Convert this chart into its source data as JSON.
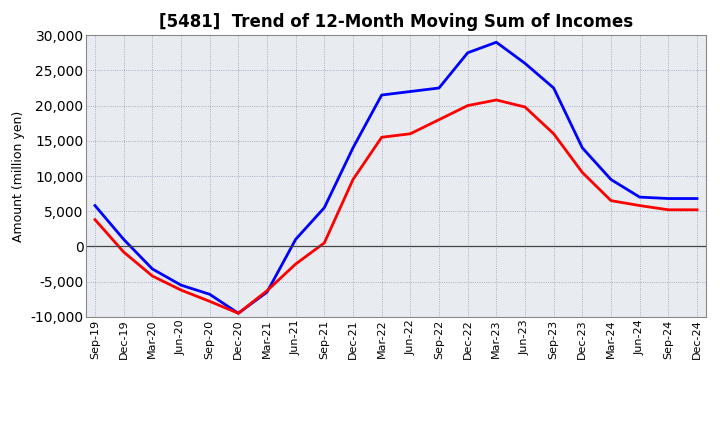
{
  "title": "[5481]  Trend of 12-Month Moving Sum of Incomes",
  "ylabel": "Amount (million yen)",
  "ylim": [
    -10000,
    30000
  ],
  "yticks": [
    -10000,
    -5000,
    0,
    5000,
    10000,
    15000,
    20000,
    25000,
    30000
  ],
  "x_labels": [
    "Sep-19",
    "Dec-19",
    "Mar-20",
    "Jun-20",
    "Sep-20",
    "Dec-20",
    "Mar-21",
    "Jun-21",
    "Sep-21",
    "Dec-21",
    "Mar-22",
    "Jun-22",
    "Sep-22",
    "Dec-22",
    "Mar-23",
    "Jun-23",
    "Sep-23",
    "Dec-23",
    "Mar-24",
    "Jun-24",
    "Sep-24",
    "Dec-24"
  ],
  "ordinary_income": [
    5800,
    1000,
    -3200,
    -5500,
    -6800,
    -9500,
    -6500,
    1000,
    5500,
    14000,
    21500,
    22000,
    22500,
    27500,
    29000,
    26000,
    22500,
    14000,
    9500,
    7000,
    6800,
    6800
  ],
  "net_income": [
    3800,
    -800,
    -4200,
    -6200,
    -7800,
    -9500,
    -6300,
    -2500,
    500,
    9500,
    15500,
    16000,
    18000,
    20000,
    20800,
    19800,
    16000,
    10500,
    6500,
    5800,
    5200,
    5200
  ],
  "ordinary_color": "#0000FF",
  "net_color": "#FF0000",
  "bg_color": "#FFFFFF",
  "plot_bg_color": "#E8ECF0",
  "grid_color": "#9999BB",
  "line_width": 2.0,
  "title_fontsize": 12,
  "ylabel_fontsize": 9,
  "tick_fontsize": 8
}
